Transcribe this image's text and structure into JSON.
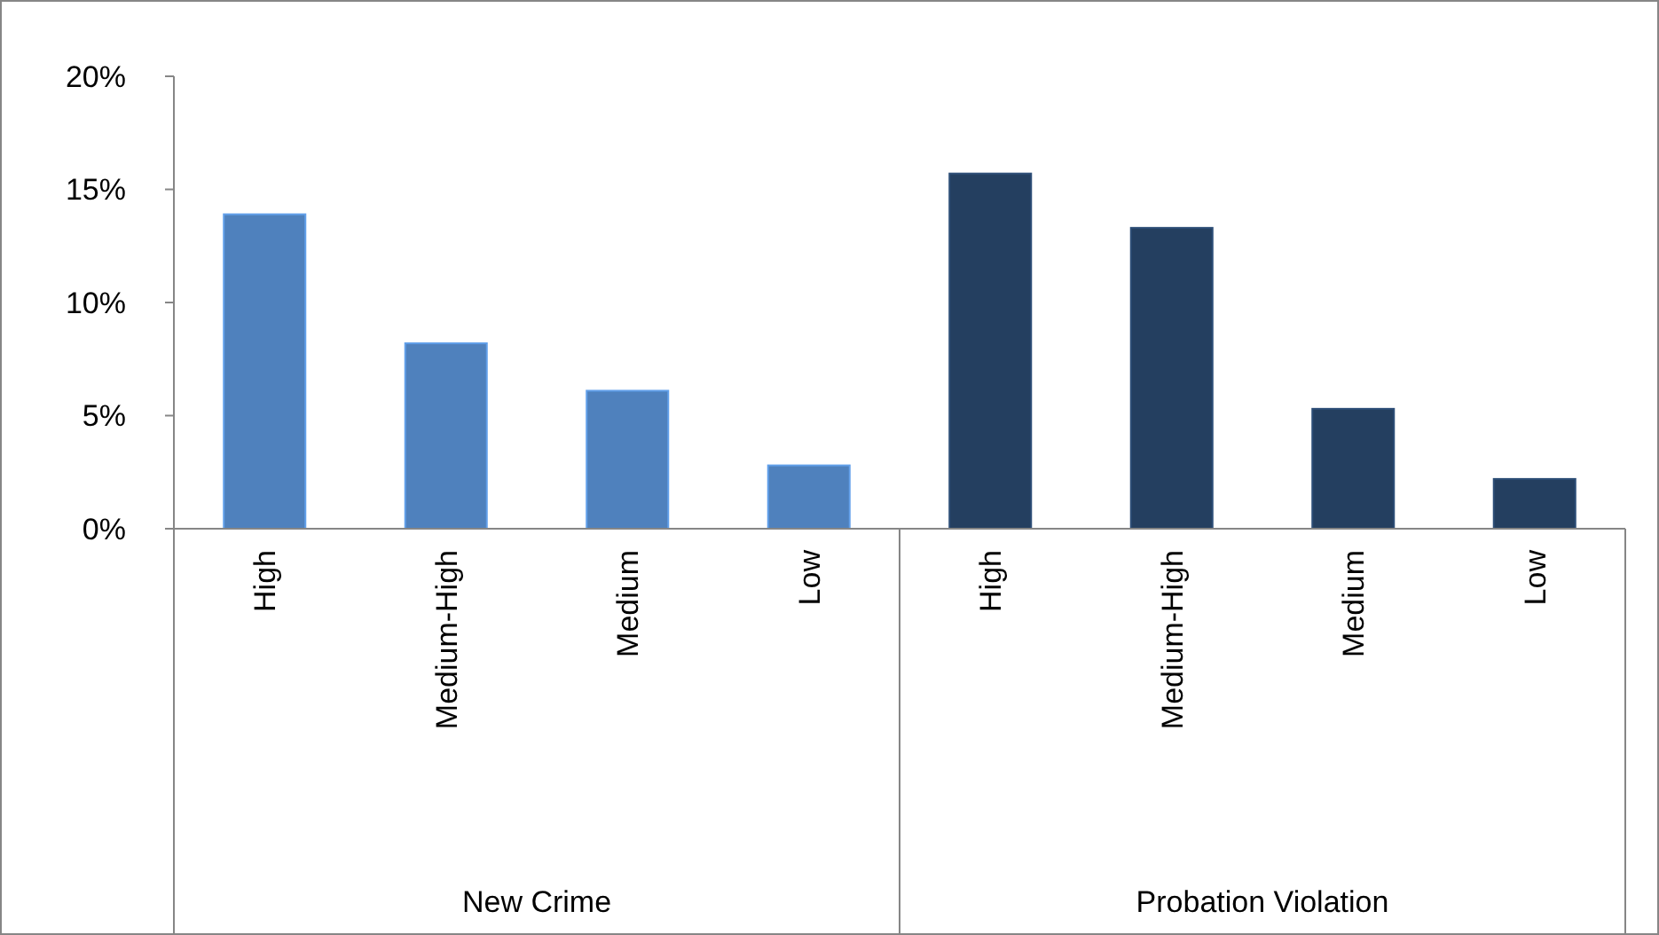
{
  "chart_data": {
    "type": "bar",
    "categories": [
      "High",
      "Medium-High",
      "Medium",
      "Low",
      "High",
      "Medium-High",
      "Medium",
      "Low"
    ],
    "series": [
      {
        "color": "#4f81bd",
        "values": [
          13.9,
          8.2,
          6.1,
          2.8,
          null,
          null,
          null,
          null
        ]
      },
      {
        "color": "#243f60",
        "values": [
          null,
          null,
          null,
          null,
          15.7,
          13.3,
          5.3,
          2.2
        ]
      }
    ],
    "ylim": [
      0,
      20
    ],
    "yticks": [
      {
        "value": 0,
        "label": "0%"
      },
      {
        "value": 5,
        "label": "5%"
      },
      {
        "value": 10,
        "label": "10%"
      },
      {
        "value": 15,
        "label": "15%"
      },
      {
        "value": 20,
        "label": "20%"
      }
    ],
    "annotations": [
      "New Crime",
      "Probation Violation"
    ],
    "grid": false
  }
}
